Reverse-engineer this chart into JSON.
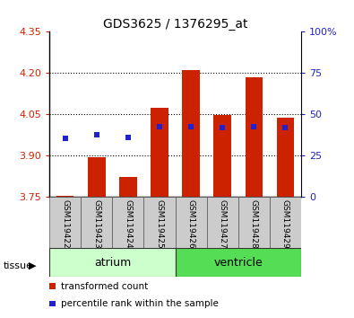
{
  "title": "GDS3625 / 1376295_at",
  "categories": [
    "GSM119422",
    "GSM119423",
    "GSM119424",
    "GSM119425",
    "GSM119426",
    "GSM119427",
    "GSM119428",
    "GSM119429"
  ],
  "red_values": [
    3.755,
    3.895,
    3.822,
    4.075,
    4.21,
    4.047,
    4.185,
    4.04
  ],
  "blue_values": [
    3.965,
    3.977,
    3.968,
    4.005,
    4.005,
    4.004,
    4.005,
    4.003
  ],
  "ylim": [
    3.75,
    4.35
  ],
  "yticks_left": [
    3.75,
    3.9,
    4.05,
    4.2,
    4.35
  ],
  "yticks_right_labels": [
    "0",
    "25",
    "50",
    "75",
    "100%"
  ],
  "bar_bottom": 3.75,
  "bar_color": "#cc2200",
  "blue_color": "#2222cc",
  "tissue_groups": [
    {
      "label": "atrium",
      "indices": [
        0,
        1,
        2,
        3
      ],
      "color": "#ccffcc"
    },
    {
      "label": "ventricle",
      "indices": [
        4,
        5,
        6,
        7
      ],
      "color": "#55dd55"
    }
  ],
  "ylabel_left_color": "#cc2200",
  "ylabel_right_color": "#2222cc",
  "gridlines": [
    3.9,
    4.05,
    4.2
  ],
  "bar_width": 0.55,
  "blue_marker_size": 5
}
